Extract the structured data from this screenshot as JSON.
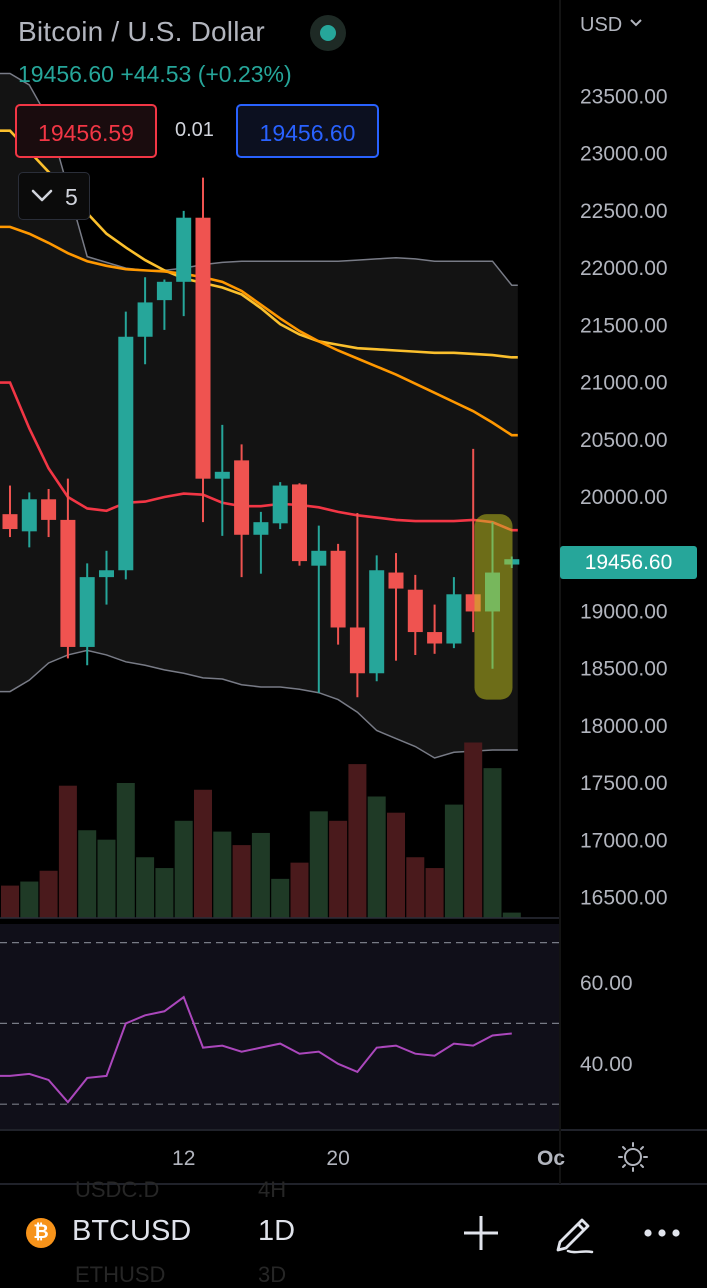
{
  "header": {
    "title": "Bitcoin / U.S. Dollar",
    "price_line": "19456.60 +44.53 (+0.23%)",
    "bid": "19456.59",
    "spread": "0.01",
    "ask": "19456.60",
    "indicators_count": "5",
    "currency": "USD"
  },
  "colors": {
    "up": "#26a69a",
    "down": "#ef5350",
    "ma_fast": "#f23645",
    "ma_mid": "#ff9800",
    "ma_slow": "#fbc02d",
    "bands": "#787b86",
    "rsi": "#ab47bc",
    "highlight": "#c8c81e"
  },
  "chart_data": {
    "type": "candlestick",
    "title": "Bitcoin / U.S. Dollar",
    "interval": "1D",
    "price_axis": {
      "ticks": [
        "23500.00",
        "23000.00",
        "22500.00",
        "22000.00",
        "21500.00",
        "21000.00",
        "20500.00",
        "20000.00",
        "19000.00",
        "18500.00",
        "18000.00",
        "17500.00",
        "17000.00",
        "16500.00"
      ],
      "range": [
        16500,
        23500
      ],
      "last_price": "19456.60"
    },
    "time_axis": {
      "ticks": [
        {
          "label": "12",
          "index": 9
        },
        {
          "label": "20",
          "index": 17
        },
        {
          "label": "Oc",
          "index": 28
        }
      ]
    },
    "candles": [
      {
        "o": 19850,
        "h": 20100,
        "l": 19650,
        "c": 19720
      },
      {
        "o": 19700,
        "h": 20040,
        "l": 19560,
        "c": 19980
      },
      {
        "o": 19980,
        "h": 20070,
        "l": 19650,
        "c": 19800
      },
      {
        "o": 19800,
        "h": 20160,
        "l": 18590,
        "c": 18690
      },
      {
        "o": 18690,
        "h": 19420,
        "l": 18530,
        "c": 19300
      },
      {
        "o": 19300,
        "h": 19530,
        "l": 19060,
        "c": 19360
      },
      {
        "o": 19360,
        "h": 21620,
        "l": 19280,
        "c": 21400
      },
      {
        "o": 21400,
        "h": 21920,
        "l": 21160,
        "c": 21700
      },
      {
        "o": 21720,
        "h": 21900,
        "l": 21460,
        "c": 21880
      },
      {
        "o": 21880,
        "h": 22500,
        "l": 21580,
        "c": 22440
      },
      {
        "o": 22440,
        "h": 22790,
        "l": 19780,
        "c": 20160
      },
      {
        "o": 20160,
        "h": 20630,
        "l": 19660,
        "c": 20220
      },
      {
        "o": 20320,
        "h": 20460,
        "l": 19300,
        "c": 19670
      },
      {
        "o": 19670,
        "h": 19870,
        "l": 19330,
        "c": 19780
      },
      {
        "o": 19770,
        "h": 20130,
        "l": 19720,
        "c": 20100
      },
      {
        "o": 20110,
        "h": 20120,
        "l": 19400,
        "c": 19440
      },
      {
        "o": 19400,
        "h": 19750,
        "l": 18290,
        "c": 19530
      },
      {
        "o": 19530,
        "h": 19590,
        "l": 18710,
        "c": 18860
      },
      {
        "o": 18860,
        "h": 19860,
        "l": 18250,
        "c": 18460
      },
      {
        "o": 18460,
        "h": 19490,
        "l": 18390,
        "c": 19360
      },
      {
        "o": 19340,
        "h": 19510,
        "l": 18570,
        "c": 19200
      },
      {
        "o": 19190,
        "h": 19320,
        "l": 18620,
        "c": 18820
      },
      {
        "o": 18820,
        "h": 19060,
        "l": 18630,
        "c": 18720
      },
      {
        "o": 18720,
        "h": 19300,
        "l": 18680,
        "c": 19150
      },
      {
        "o": 19150,
        "h": 20420,
        "l": 18820,
        "c": 19000
      },
      {
        "o": 19000,
        "h": 19780,
        "l": 18500,
        "c": 19340
      },
      {
        "o": 19410,
        "h": 19480,
        "l": 19380,
        "c": 19456.6
      }
    ],
    "volume": [
      0.24,
      0.27,
      0.35,
      0.98,
      0.65,
      0.58,
      1.0,
      0.45,
      0.37,
      0.72,
      0.95,
      0.64,
      0.54,
      0.63,
      0.29,
      0.41,
      0.79,
      0.72,
      1.14,
      0.9,
      0.78,
      0.45,
      0.37,
      0.84,
      1.3,
      1.11,
      0.04
    ],
    "ma_fast": [
      21000,
      20600,
      20250,
      20000,
      19900,
      19880,
      19950,
      19960,
      20000,
      20030,
      20020,
      19950,
      19920,
      19920,
      19940,
      19930,
      19910,
      19870,
      19840,
      19820,
      19800,
      19790,
      19790,
      19790,
      19800,
      19780,
      19710
    ],
    "ma_mid": [
      22360,
      22300,
      22220,
      22130,
      22060,
      22020,
      21990,
      21980,
      21970,
      21950,
      21920,
      21880,
      21800,
      21680,
      21560,
      21450,
      21360,
      21280,
      21210,
      21140,
      21070,
      20990,
      20910,
      20830,
      20750,
      20650,
      20540
    ],
    "ma_slow": [
      23200,
      23020,
      22840,
      22660,
      22480,
      22300,
      22180,
      22070,
      21980,
      21910,
      21870,
      21830,
      21770,
      21650,
      21510,
      21420,
      21360,
      21330,
      21300,
      21290,
      21280,
      21270,
      21260,
      21260,
      21250,
      21240,
      21220
    ],
    "bb_upper": [
      23700,
      23600,
      23300,
      22700,
      22100,
      22050,
      22000,
      21980,
      21980,
      22000,
      22030,
      22050,
      22060,
      22060,
      22060,
      22060,
      22060,
      22060,
      22070,
      22080,
      22090,
      22080,
      22060,
      22060,
      22060,
      22060,
      21850
    ],
    "bb_lower": [
      18300,
      18400,
      18550,
      18620,
      18660,
      18620,
      18560,
      18530,
      18490,
      18460,
      18420,
      18410,
      18360,
      18340,
      18340,
      18320,
      18290,
      18230,
      18120,
      17960,
      17890,
      17820,
      17720,
      17770,
      17780,
      17790,
      17790
    ],
    "rsi": {
      "ticks": [
        "60.00",
        "40.00"
      ],
      "range": [
        28,
        73
      ],
      "values": [
        37,
        37.5,
        36,
        30.5,
        36.5,
        37,
        50,
        52,
        53,
        56.5,
        44,
        44.5,
        43,
        44,
        45,
        42.5,
        43,
        40,
        38,
        44,
        44.5,
        42.5,
        42,
        45,
        44.5,
        47,
        47.5
      ]
    }
  },
  "bottom": {
    "symbol": "BTCUSD",
    "interval": "1D",
    "ghost_above_symbol": "USDC.D",
    "ghost_above_interval": "4H",
    "ghost_below_symbol": "ETHUSD",
    "ghost_below_interval": "3D"
  }
}
